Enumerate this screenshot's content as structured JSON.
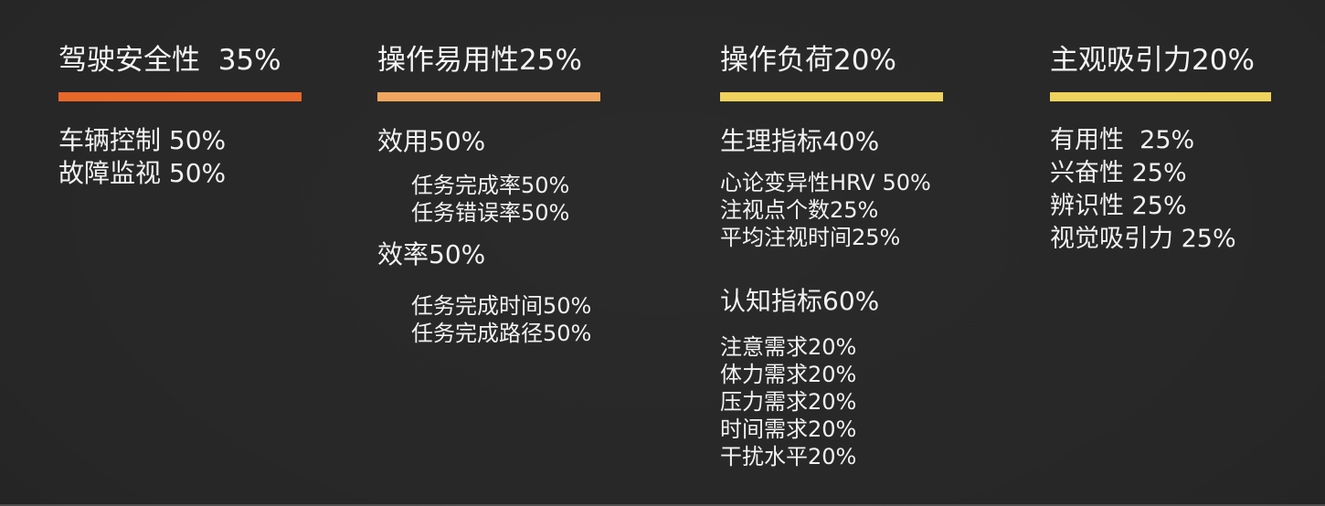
{
  "canvas": {
    "background": "#272727",
    "text_color": "#F2F2F2"
  },
  "columns": [
    {
      "title": "驾驶安全性  35%",
      "underline_color": "#E8682A",
      "items": [
        "车辆控制 50%",
        "故障监视 50%"
      ]
    },
    {
      "title": "操作易用性25%",
      "underline_color": "#F0A55E",
      "items": [
        "效用50%",
        "任务完成率50%",
        "任务错误率50%",
        "效率50%",
        "任务完成时间50%",
        "任务完成路径50%"
      ]
    },
    {
      "title": "操作负荷20%",
      "underline_color": "#EFD35B",
      "items": [
        "生理指标40%",
        "心论变异性HRV 50%",
        "注视点个数25%",
        "平均注视时间25%",
        "认知指标60%",
        "注意需求20%",
        "体力需求20%",
        "压力需求20%",
        "时间需求20%",
        "干扰水平20%"
      ]
    },
    {
      "title": "主观吸引力20%",
      "underline_color": "#EFD35B",
      "items": [
        "有用性  25%",
        "兴奋性 25%",
        "辨识性 25%",
        "视觉吸引力 25%"
      ]
    }
  ]
}
